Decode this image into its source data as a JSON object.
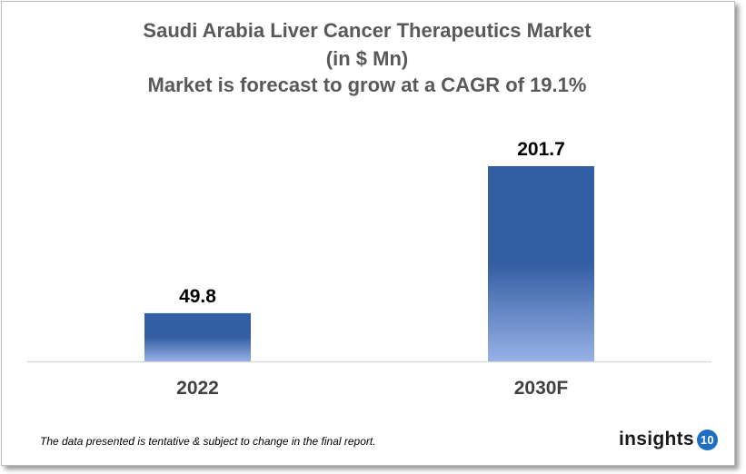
{
  "chart_data": {
    "type": "bar",
    "title": "Saudi Arabia Liver Cancer Therapeutics Market",
    "subtitle": "(in $ Mn)",
    "subtitle2": "Market is forecast to grow at a CAGR of 19.1%",
    "categories": [
      "2022",
      "2030F"
    ],
    "values": [
      49.8,
      201.7
    ],
    "value_labels": [
      "49.8",
      "201.7"
    ],
    "ylim": [
      0,
      201.7
    ],
    "grid": false,
    "colors": {
      "bar_top": "#345ea3",
      "bar_bottom": "#97b1e6"
    }
  },
  "footer": {
    "note": "The data presented is tentative & subject to change in the final report.",
    "logo_text": "insights",
    "logo_badge": "10"
  }
}
